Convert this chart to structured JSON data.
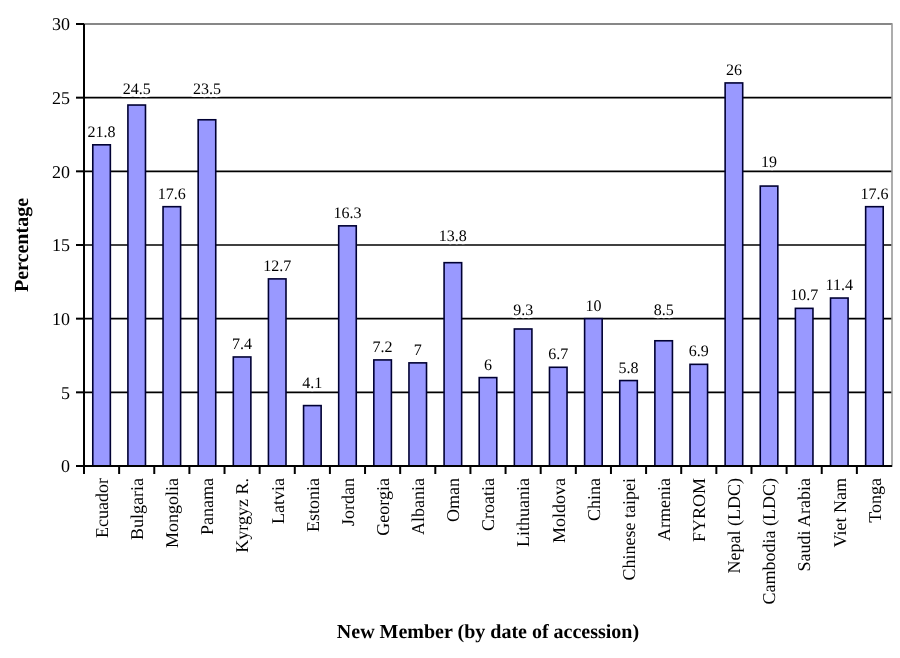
{
  "chart_data": {
    "type": "bar",
    "xlabel": "New Member (by date of accession)",
    "ylabel": "Percentage",
    "categories": [
      "Ecuador",
      "Bulgaria",
      "Mongolia",
      "Panama",
      "Kyrgyz R.",
      "Latvia",
      "Estonia",
      "Jordan",
      "Georgia",
      "Albania",
      "Oman",
      "Croatia",
      "Lithuania",
      "Moldova",
      "China",
      "Chinese taipei",
      "Armenia",
      "FYROM",
      "Nepal (LDC)",
      "Cambodia (LDC)",
      "Saudi Arabia",
      "Viet Nam",
      "Tonga"
    ],
    "values": [
      21.8,
      24.5,
      17.6,
      23.5,
      7.4,
      12.7,
      4.1,
      16.3,
      7.2,
      7,
      13.8,
      6,
      9.3,
      6.7,
      10,
      5.8,
      8.5,
      6.9,
      26,
      19,
      10.7,
      11.4,
      17.6
    ],
    "color": "#9999ff",
    "ylim": [
      0,
      30
    ],
    "yticks": [
      0,
      5,
      10,
      15,
      20,
      25,
      30
    ],
    "grid": "y",
    "data_labels": true
  }
}
